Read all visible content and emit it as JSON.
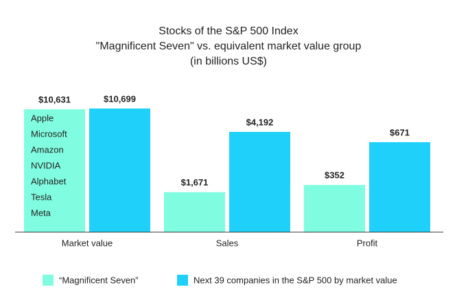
{
  "chart_data": {
    "type": "bar",
    "title": "Stocks of the S&P 500 Index",
    "subtitle": [
      "\"Magnificent Seven\" vs. equivalent market value group",
      "(in billions US$)"
    ],
    "categories": [
      "Market value",
      "Sales",
      "Profit"
    ],
    "series": [
      {
        "name": "“Magnificent Seven”",
        "color": "#80fde0",
        "values": [
          10631,
          1671,
          352
        ],
        "value_labels": [
          "$10,631",
          "$1,671",
          "$352"
        ]
      },
      {
        "name": "Next 39 companies in the S&P 500 by market value",
        "color": "#1fd1fa",
        "values": [
          10699,
          4192,
          671
        ],
        "value_labels": [
          "$10,699",
          "$4,192",
          "$671"
        ]
      }
    ],
    "annotations": [
      "Apple",
      "Microsoft",
      "Amazon",
      "NVIDIA",
      "Alphabet",
      "Tesla",
      "Meta"
    ]
  }
}
